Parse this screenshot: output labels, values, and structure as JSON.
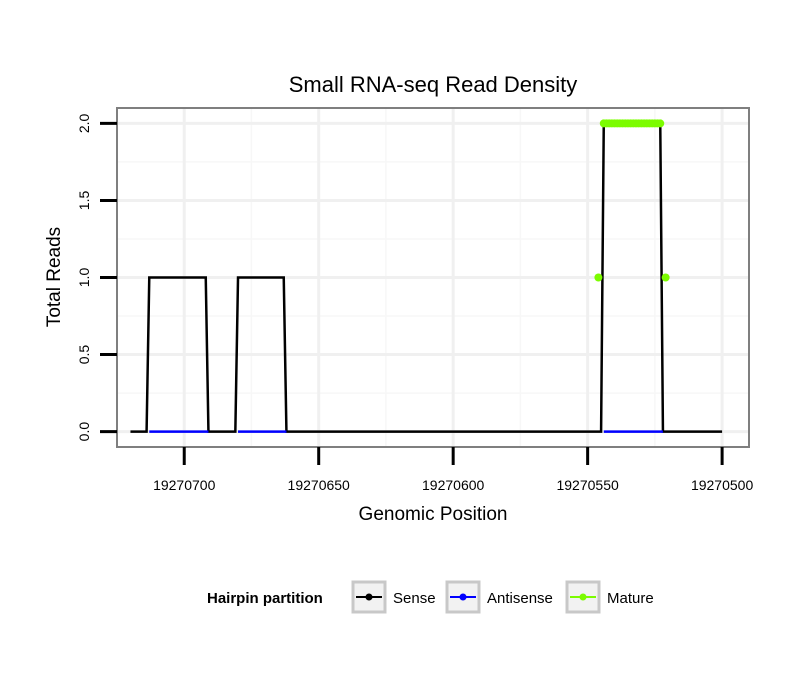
{
  "chart_data": {
    "type": "line",
    "title": "Small RNA-seq Read Density",
    "xlabel": "Genomic Position",
    "ylabel": "Total Reads",
    "x_reversed": true,
    "xlim": [
      19270725,
      19270490
    ],
    "ylim": [
      -0.1,
      2.1
    ],
    "x_ticks": [
      19270700,
      19270650,
      19270600,
      19270550,
      19270500
    ],
    "x_tick_labels": [
      "19270700",
      "19270650",
      "19270600",
      "19270550",
      "19270500"
    ],
    "y_ticks": [
      0,
      0.5,
      1,
      1.5,
      2
    ],
    "y_tick_labels": [
      "0.0",
      "0.5",
      "1.0",
      "1.5",
      "2.0"
    ],
    "grid": true,
    "legend": {
      "title": "Hairpin partition",
      "position": "bottom",
      "entries": [
        "Sense",
        "Antisense",
        "Mature"
      ]
    },
    "series": [
      {
        "name": "Sense",
        "color": "#000000",
        "x": [
          19270720,
          19270714,
          19270713,
          19270692,
          19270691,
          19270681,
          19270680,
          19270663,
          19270662,
          19270545,
          19270544,
          19270523,
          19270522,
          19270500
        ],
        "y": [
          0,
          0,
          1,
          1,
          0,
          0,
          1,
          1,
          0,
          0,
          2,
          2,
          0,
          0
        ]
      },
      {
        "name": "Antisense",
        "color": "#0000ff",
        "x": [
          19270713,
          19270691,
          19270680,
          19270662,
          19270544,
          19270522
        ],
        "y": [
          0,
          0,
          0,
          0,
          0,
          0
        ]
      },
      {
        "name": "Mature",
        "color": "#7cfc00",
        "x": [
          19270546,
          19270544,
          19270543,
          19270542,
          19270541,
          19270540,
          19270539,
          19270538,
          19270537,
          19270536,
          19270535,
          19270534,
          19270533,
          19270532,
          19270531,
          19270530,
          19270529,
          19270528,
          19270527,
          19270526,
          19270525,
          19270524,
          19270523,
          19270521
        ],
        "y": [
          1,
          2,
          2,
          2,
          2,
          2,
          2,
          2,
          2,
          2,
          2,
          2,
          2,
          2,
          2,
          2,
          2,
          2,
          2,
          2,
          2,
          2,
          2,
          1
        ]
      }
    ]
  }
}
